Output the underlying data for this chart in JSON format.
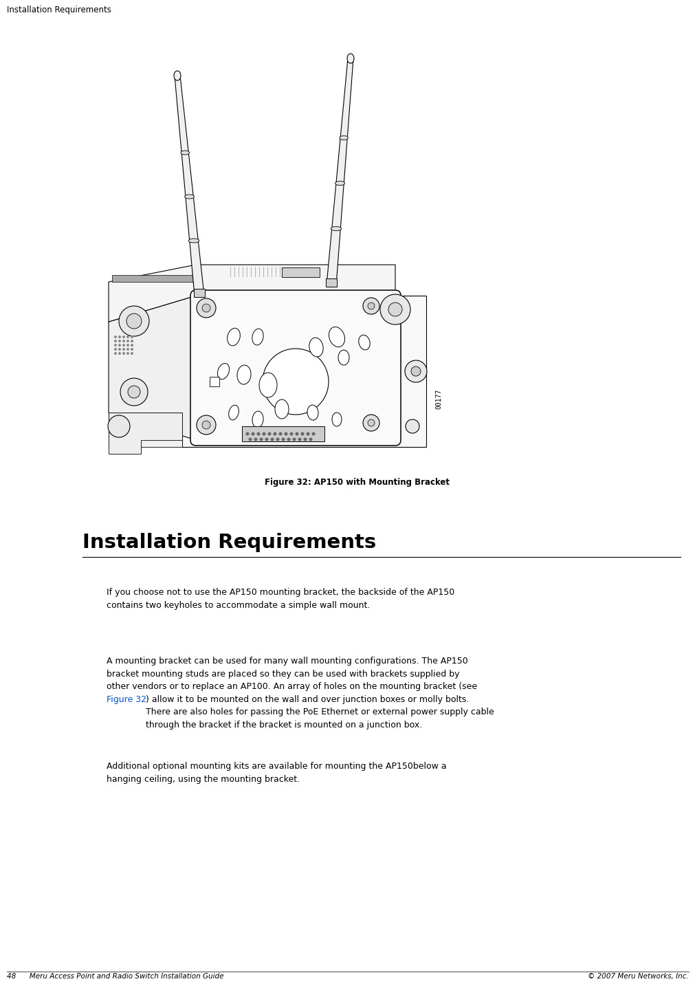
{
  "page_width": 10.12,
  "page_height": 14.5,
  "bg_color": "#ffffff",
  "header_text": "Installation Requirements",
  "header_font_size": 8.5,
  "footer_left": "48      Meru Access Point and Radio Switch Installation Guide",
  "footer_right": "© 2007 Meru Networks, Inc.",
  "footer_font_size": 7.5,
  "figure_caption": "Figure 32: AP150 with Mounting Bracket",
  "figure_caption_font_size": 8.5,
  "section_title": "Installation Requirements",
  "section_title_font_size": 21,
  "paragraph1": "If you choose not to use the AP150 mounting bracket, the backside of the AP150\ncontains two keyholes to accommodate a simple wall mount.",
  "paragraph2_part1": "A mounting bracket can be used for many wall mounting configurations. The AP150\nbracket mounting studs are placed so they can be used with brackets supplied by\nother vendors or to replace an AP100. An array of holes on the mounting bracket (see\n",
  "paragraph2_link": "Figure 32",
  "paragraph2_part2": ") allow it to be mounted on the wall and over junction boxes or molly bolts.\nThere are also holes for passing the PoE Ethernet or external power supply cable\nthrough the bracket if the bracket is mounted on a junction box.",
  "paragraph3": "Additional optional mounting kits are available for mounting the AP150below a\nhanging ceiling, using the mounting bracket.",
  "para_font_size": 9.0,
  "link_color": "#0055cc",
  "text_color": "#000000",
  "code_text": "00177",
  "lw": 0.8
}
